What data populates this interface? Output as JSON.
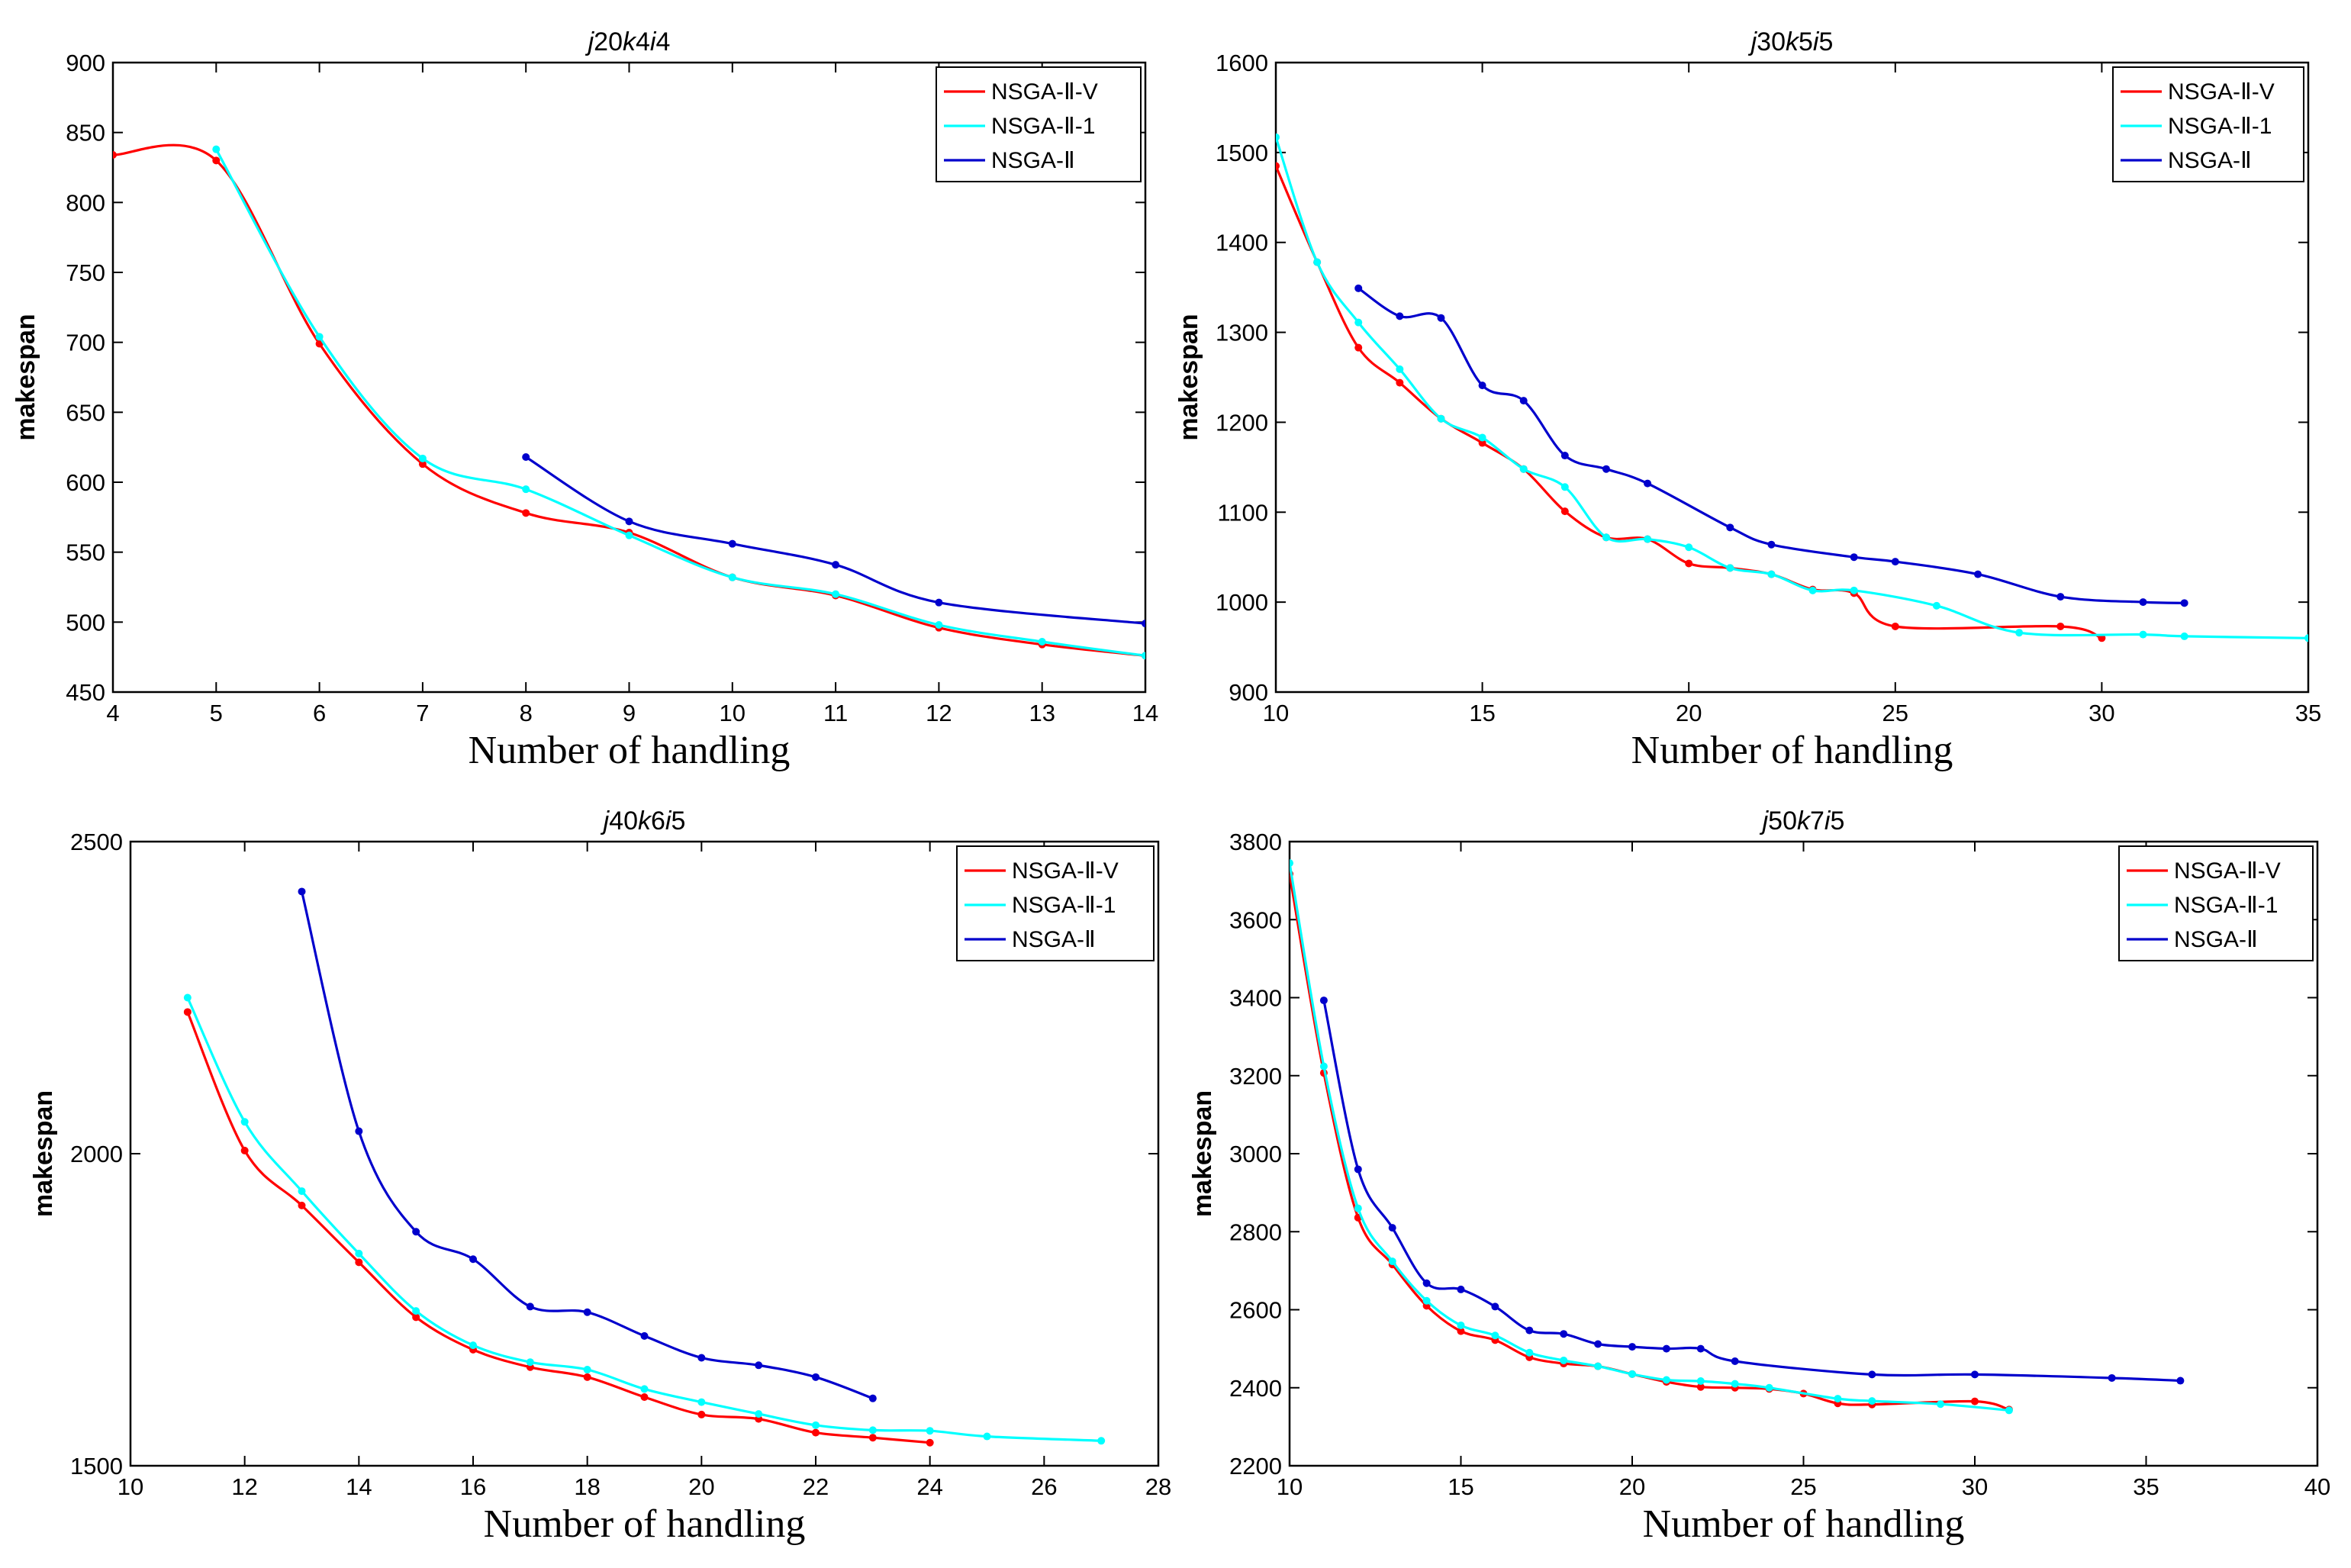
{
  "chart_data": [
    {
      "type": "line",
      "title": "j20k4i4",
      "xlabel": "Number of handling",
      "ylabel": "makespan",
      "xlim": [
        4,
        14
      ],
      "ylim": [
        450,
        900
      ],
      "xticks": [
        4,
        5,
        6,
        7,
        8,
        9,
        10,
        11,
        12,
        13,
        14
      ],
      "yticks": [
        450,
        500,
        550,
        600,
        650,
        700,
        750,
        800,
        850,
        900
      ],
      "legend_position": "top-right",
      "series": [
        {
          "name": "NSGA-Ⅱ-V",
          "color": "#ff0000",
          "x": [
            4,
            5,
            6,
            7,
            8,
            9,
            10,
            11,
            12,
            13,
            14
          ],
          "y": [
            834,
            830,
            699,
            613,
            578,
            564,
            532,
            519,
            496,
            484,
            476
          ]
        },
        {
          "name": "NSGA-Ⅱ-1",
          "color": "#00ffff",
          "x": [
            5,
            6,
            7,
            8,
            9,
            10,
            11,
            12,
            13,
            14
          ],
          "y": [
            838,
            704,
            617,
            595,
            562,
            532,
            520,
            498,
            486,
            476
          ]
        },
        {
          "name": "NSGA-Ⅱ",
          "color": "#0000cc",
          "x": [
            8,
            9,
            10,
            11,
            12,
            14
          ],
          "y": [
            618,
            572,
            556,
            541,
            514,
            499
          ]
        }
      ]
    },
    {
      "type": "line",
      "title": "j30k5i5",
      "xlabel": "Number of handling",
      "ylabel": "makespan",
      "xlim": [
        10,
        35
      ],
      "ylim": [
        900,
        1600
      ],
      "xticks": [
        10,
        15,
        20,
        25,
        30,
        35
      ],
      "yticks": [
        900,
        1000,
        1100,
        1200,
        1300,
        1400,
        1500,
        1600
      ],
      "legend_position": "top-right",
      "series": [
        {
          "name": "NSGA-Ⅱ-V",
          "color": "#ff0000",
          "x": [
            10,
            11,
            12,
            13,
            14,
            15,
            16,
            17,
            18,
            19,
            20,
            21,
            22,
            23,
            24,
            25,
            29,
            30
          ],
          "y": [
            1485,
            1378,
            1283,
            1244,
            1204,
            1177,
            1148,
            1101,
            1072,
            1070,
            1043,
            1038,
            1031,
            1014,
            1010,
            973,
            973,
            960
          ]
        },
        {
          "name": "NSGA-Ⅱ-1",
          "color": "#00ffff",
          "x": [
            10,
            11,
            12,
            13,
            14,
            15,
            16,
            17,
            18,
            19,
            20,
            21,
            22,
            23,
            24,
            26,
            28,
            31,
            32,
            35
          ],
          "y": [
            1517,
            1378,
            1311,
            1259,
            1204,
            1183,
            1148,
            1128,
            1072,
            1070,
            1061,
            1038,
            1031,
            1013,
            1013,
            996,
            966,
            964,
            962,
            960
          ]
        },
        {
          "name": "NSGA-Ⅱ",
          "color": "#0000cc",
          "x": [
            12,
            13,
            14,
            15,
            16,
            17,
            18,
            19,
            21,
            22,
            24,
            25,
            27,
            29,
            31,
            32
          ],
          "y": [
            1349,
            1318,
            1316,
            1241,
            1224,
            1163,
            1148,
            1132,
            1083,
            1064,
            1050,
            1045,
            1031,
            1006,
            1000,
            999
          ]
        }
      ]
    },
    {
      "type": "line",
      "title": "j40k6i5",
      "xlabel": "Number of handling",
      "ylabel": "makespan",
      "xlim": [
        10,
        28
      ],
      "ylim": [
        1500,
        2500
      ],
      "xticks": [
        10,
        12,
        14,
        16,
        18,
        20,
        22,
        24,
        26,
        28
      ],
      "yticks": [
        1500,
        2000,
        2500
      ],
      "legend_position": "top-right",
      "series": [
        {
          "name": "NSGA-Ⅱ-V",
          "color": "#ff0000",
          "x": [
            11,
            12,
            13,
            14,
            15,
            16,
            17,
            18,
            19,
            20,
            21,
            22,
            23,
            24
          ],
          "y": [
            2227,
            2005,
            1917,
            1826,
            1738,
            1686,
            1658,
            1642,
            1610,
            1582,
            1575,
            1553,
            1545,
            1537
          ]
        },
        {
          "name": "NSGA-Ⅱ-1",
          "color": "#00ffff",
          "x": [
            11,
            12,
            13,
            14,
            15,
            16,
            17,
            18,
            19,
            20,
            21,
            22,
            23,
            24,
            25,
            27
          ],
          "y": [
            2250,
            2051,
            1940,
            1840,
            1748,
            1693,
            1666,
            1654,
            1623,
            1602,
            1583,
            1565,
            1557,
            1556,
            1547,
            1540
          ]
        },
        {
          "name": "NSGA-Ⅱ",
          "color": "#0000cc",
          "x": [
            13,
            14,
            15,
            16,
            17,
            18,
            19,
            20,
            21,
            22,
            23
          ],
          "y": [
            2420,
            2036,
            1875,
            1831,
            1755,
            1746,
            1708,
            1673,
            1661,
            1642,
            1608
          ]
        }
      ]
    },
    {
      "type": "line",
      "title": "j50k7i5",
      "xlabel": "Number of handling",
      "ylabel": "makespan",
      "xlim": [
        10,
        40
      ],
      "ylim": [
        2200,
        3800
      ],
      "xticks": [
        10,
        15,
        20,
        25,
        30,
        35,
        40
      ],
      "yticks": [
        2200,
        2400,
        2600,
        2800,
        3000,
        3200,
        3400,
        3600,
        3800
      ],
      "legend_position": "top-right",
      "series": [
        {
          "name": "NSGA-Ⅱ-V",
          "color": "#ff0000",
          "x": [
            10,
            11,
            12,
            13,
            14,
            15,
            16,
            17,
            18,
            19,
            20,
            21,
            22,
            23,
            24,
            25,
            26,
            27,
            30,
            31
          ],
          "y": [
            3717,
            3207,
            2836,
            2716,
            2610,
            2545,
            2522,
            2478,
            2462,
            2455,
            2435,
            2415,
            2402,
            2400,
            2397,
            2385,
            2360,
            2357,
            2365,
            2344
          ]
        },
        {
          "name": "NSGA-Ⅱ-1",
          "color": "#00ffff",
          "x": [
            10,
            11,
            12,
            13,
            14,
            15,
            16,
            17,
            18,
            19,
            20,
            21,
            22,
            23,
            24,
            26,
            27,
            29,
            31
          ],
          "y": [
            3745,
            3224,
            2860,
            2724,
            2623,
            2560,
            2534,
            2490,
            2470,
            2455,
            2435,
            2420,
            2417,
            2410,
            2400,
            2372,
            2366,
            2358,
            2342
          ]
        },
        {
          "name": "NSGA-Ⅱ",
          "color": "#0000cc",
          "x": [
            11,
            12,
            13,
            14,
            15,
            16,
            17,
            18,
            19,
            20,
            21,
            22,
            23,
            27,
            30,
            34,
            36
          ],
          "y": [
            3393,
            2960,
            2810,
            2668,
            2652,
            2608,
            2547,
            2538,
            2512,
            2505,
            2500,
            2500,
            2468,
            2434,
            2434,
            2425,
            2418
          ]
        }
      ]
    }
  ]
}
